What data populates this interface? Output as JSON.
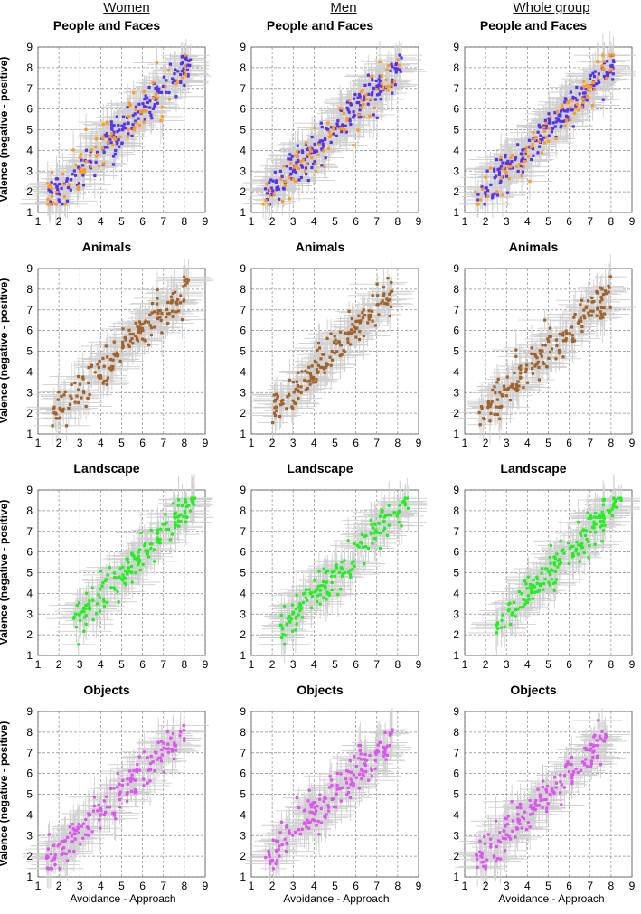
{
  "columns": [
    "Women",
    "Men",
    "Whole group"
  ],
  "y_label": "Valence (negative - positive)",
  "x_label": "Avoidance - Approach",
  "colors": {
    "grid": "#8c8c8c",
    "error_bars": "#cfcfcf",
    "people_main": "#5533ee",
    "people_secondary": "#ff9a1a",
    "animals": "#a0622a",
    "landscape": "#22ee22",
    "objects": "#dd55f0"
  },
  "chart_data": [
    {
      "type": "scatter",
      "category": "People and Faces",
      "title": "People and Faces",
      "group": "Women",
      "xlim": [
        1,
        9
      ],
      "ylim": [
        1,
        9
      ],
      "xticks": [
        1,
        2,
        3,
        4,
        5,
        6,
        7,
        8,
        9
      ],
      "yticks": [
        1,
        2,
        3,
        4,
        5,
        6,
        7,
        8,
        9
      ],
      "grid": true,
      "series": [
        {
          "name": "faces",
          "color": "#5533ee",
          "trend": {
            "slope": 0.99,
            "intercept": 0.1,
            "x_range": [
              1.5,
              8.3
            ],
            "spread": 0.45
          }
        },
        {
          "name": "people",
          "color": "#ff9a1a",
          "trend": {
            "slope": 0.99,
            "intercept": 0.1,
            "x_range": [
              1.4,
              8.3
            ],
            "spread": 0.55
          }
        }
      ]
    },
    {
      "type": "scatter",
      "category": "People and Faces",
      "title": "People and Faces",
      "group": "Men",
      "xlim": [
        1,
        9
      ],
      "ylim": [
        1,
        9
      ],
      "xticks": [
        1,
        2,
        3,
        4,
        5,
        6,
        7,
        8,
        9
      ],
      "yticks": [
        1,
        2,
        3,
        4,
        5,
        6,
        7,
        8,
        9
      ],
      "grid": true,
      "series": [
        {
          "name": "faces",
          "color": "#5533ee",
          "trend": {
            "slope": 1.0,
            "intercept": 0.05,
            "x_range": [
              1.6,
              8.2
            ],
            "spread": 0.45
          }
        },
        {
          "name": "people",
          "color": "#ff9a1a",
          "trend": {
            "slope": 1.0,
            "intercept": 0.05,
            "x_range": [
              1.5,
              8.2
            ],
            "spread": 0.55
          }
        }
      ]
    },
    {
      "type": "scatter",
      "category": "People and Faces",
      "title": "People and Faces",
      "group": "Whole group",
      "xlim": [
        1,
        9
      ],
      "ylim": [
        1,
        9
      ],
      "xticks": [
        1,
        2,
        3,
        4,
        5,
        6,
        7,
        8,
        9
      ],
      "yticks": [
        1,
        2,
        3,
        4,
        5,
        6,
        7,
        8,
        9
      ],
      "grid": true,
      "series": [
        {
          "name": "faces",
          "color": "#5533ee",
          "trend": {
            "slope": 1.0,
            "intercept": 0.05,
            "x_range": [
              1.6,
              8.2
            ],
            "spread": 0.4
          }
        },
        {
          "name": "people",
          "color": "#ff9a1a",
          "trend": {
            "slope": 1.0,
            "intercept": 0.05,
            "x_range": [
              1.5,
              8.2
            ],
            "spread": 0.5
          }
        }
      ]
    },
    {
      "type": "scatter",
      "category": "Animals",
      "title": "Animals",
      "group": "Women",
      "xlim": [
        1,
        9
      ],
      "ylim": [
        1,
        9
      ],
      "xticks": [
        1,
        2,
        3,
        4,
        5,
        6,
        7,
        8,
        9
      ],
      "yticks": [
        1,
        2,
        3,
        4,
        5,
        6,
        7,
        8,
        9
      ],
      "grid": true,
      "series": [
        {
          "name": "animals",
          "color": "#a0622a",
          "trend": {
            "slope": 0.98,
            "intercept": 0.1,
            "x_range": [
              1.6,
              8.2
            ],
            "spread": 0.5
          }
        }
      ]
    },
    {
      "type": "scatter",
      "category": "Animals",
      "title": "Animals",
      "group": "Men",
      "xlim": [
        1,
        9
      ],
      "ylim": [
        1,
        9
      ],
      "xticks": [
        1,
        2,
        3,
        4,
        5,
        6,
        7,
        8,
        9
      ],
      "yticks": [
        1,
        2,
        3,
        4,
        5,
        6,
        7,
        8,
        9
      ],
      "grid": true,
      "series": [
        {
          "name": "animals",
          "color": "#a0622a",
          "trend": {
            "slope": 0.98,
            "intercept": 0.2,
            "x_range": [
              1.9,
              7.8
            ],
            "spread": 0.45
          }
        }
      ]
    },
    {
      "type": "scatter",
      "category": "Animals",
      "title": "Animals",
      "group": "Whole group",
      "xlim": [
        1,
        9
      ],
      "ylim": [
        1,
        9
      ],
      "xticks": [
        1,
        2,
        3,
        4,
        5,
        6,
        7,
        8,
        9
      ],
      "yticks": [
        1,
        2,
        3,
        4,
        5,
        6,
        7,
        8,
        9
      ],
      "grid": true,
      "series": [
        {
          "name": "animals",
          "color": "#a0622a",
          "trend": {
            "slope": 0.98,
            "intercept": 0.15,
            "x_range": [
              1.7,
              8.0
            ],
            "spread": 0.45
          }
        }
      ]
    },
    {
      "type": "scatter",
      "category": "Landscape",
      "title": "Landscape",
      "group": "Women",
      "xlim": [
        1,
        9
      ],
      "ylim": [
        1,
        9
      ],
      "xticks": [
        1,
        2,
        3,
        4,
        5,
        6,
        7,
        8,
        9
      ],
      "yticks": [
        1,
        2,
        3,
        4,
        5,
        6,
        7,
        8,
        9
      ],
      "grid": true,
      "series": [
        {
          "name": "landscape",
          "color": "#22ee22",
          "trend": {
            "slope": 1.05,
            "intercept": -0.3,
            "x_range": [
              2.7,
              8.5
            ],
            "spread": 0.45
          }
        }
      ]
    },
    {
      "type": "scatter",
      "category": "Landscape",
      "title": "Landscape",
      "group": "Men",
      "xlim": [
        1,
        9
      ],
      "ylim": [
        1,
        9
      ],
      "xticks": [
        1,
        2,
        3,
        4,
        5,
        6,
        7,
        8,
        9
      ],
      "yticks": [
        1,
        2,
        3,
        4,
        5,
        6,
        7,
        8,
        9
      ],
      "grid": true,
      "series": [
        {
          "name": "landscape",
          "color": "#22ee22",
          "trend": {
            "slope": 1.05,
            "intercept": -0.3,
            "x_range": [
              2.4,
              8.5
            ],
            "spread": 0.45
          }
        }
      ]
    },
    {
      "type": "scatter",
      "category": "Landscape",
      "title": "Landscape",
      "group": "Whole group",
      "xlim": [
        1,
        9
      ],
      "ylim": [
        1,
        9
      ],
      "xticks": [
        1,
        2,
        3,
        4,
        5,
        6,
        7,
        8,
        9
      ],
      "yticks": [
        1,
        2,
        3,
        4,
        5,
        6,
        7,
        8,
        9
      ],
      "grid": true,
      "series": [
        {
          "name": "landscape",
          "color": "#22ee22",
          "trend": {
            "slope": 1.05,
            "intercept": -0.3,
            "x_range": [
              2.5,
              8.5
            ],
            "spread": 0.4
          }
        }
      ]
    },
    {
      "type": "scatter",
      "category": "Objects",
      "title": "Objects",
      "group": "Women",
      "xlim": [
        1,
        9
      ],
      "ylim": [
        1,
        9
      ],
      "xticks": [
        1,
        2,
        3,
        4,
        5,
        6,
        7,
        8,
        9
      ],
      "yticks": [
        1,
        2,
        3,
        4,
        5,
        6,
        7,
        8,
        9
      ],
      "grid": true,
      "series": [
        {
          "name": "objects",
          "color": "#dd55f0",
          "trend": {
            "slope": 0.95,
            "intercept": 0.3,
            "x_range": [
              1.4,
              8.0
            ],
            "spread": 0.45
          }
        }
      ]
    },
    {
      "type": "scatter",
      "category": "Objects",
      "title": "Objects",
      "group": "Men",
      "xlim": [
        1,
        9
      ],
      "ylim": [
        1,
        9
      ],
      "xticks": [
        1,
        2,
        3,
        4,
        5,
        6,
        7,
        8,
        9
      ],
      "yticks": [
        1,
        2,
        3,
        4,
        5,
        6,
        7,
        8,
        9
      ],
      "grid": true,
      "series": [
        {
          "name": "objects",
          "color": "#dd55f0",
          "trend": {
            "slope": 0.95,
            "intercept": 0.3,
            "x_range": [
              1.6,
              7.8
            ],
            "spread": 0.5
          }
        }
      ]
    },
    {
      "type": "scatter",
      "category": "Objects",
      "title": "Objects",
      "group": "Whole group",
      "xlim": [
        1,
        9
      ],
      "ylim": [
        1,
        9
      ],
      "xticks": [
        1,
        2,
        3,
        4,
        5,
        6,
        7,
        8,
        9
      ],
      "yticks": [
        1,
        2,
        3,
        4,
        5,
        6,
        7,
        8,
        9
      ],
      "grid": true,
      "series": [
        {
          "name": "objects",
          "color": "#dd55f0",
          "trend": {
            "slope": 0.95,
            "intercept": 0.3,
            "x_range": [
              1.5,
              7.8
            ],
            "spread": 0.45
          }
        }
      ]
    }
  ]
}
